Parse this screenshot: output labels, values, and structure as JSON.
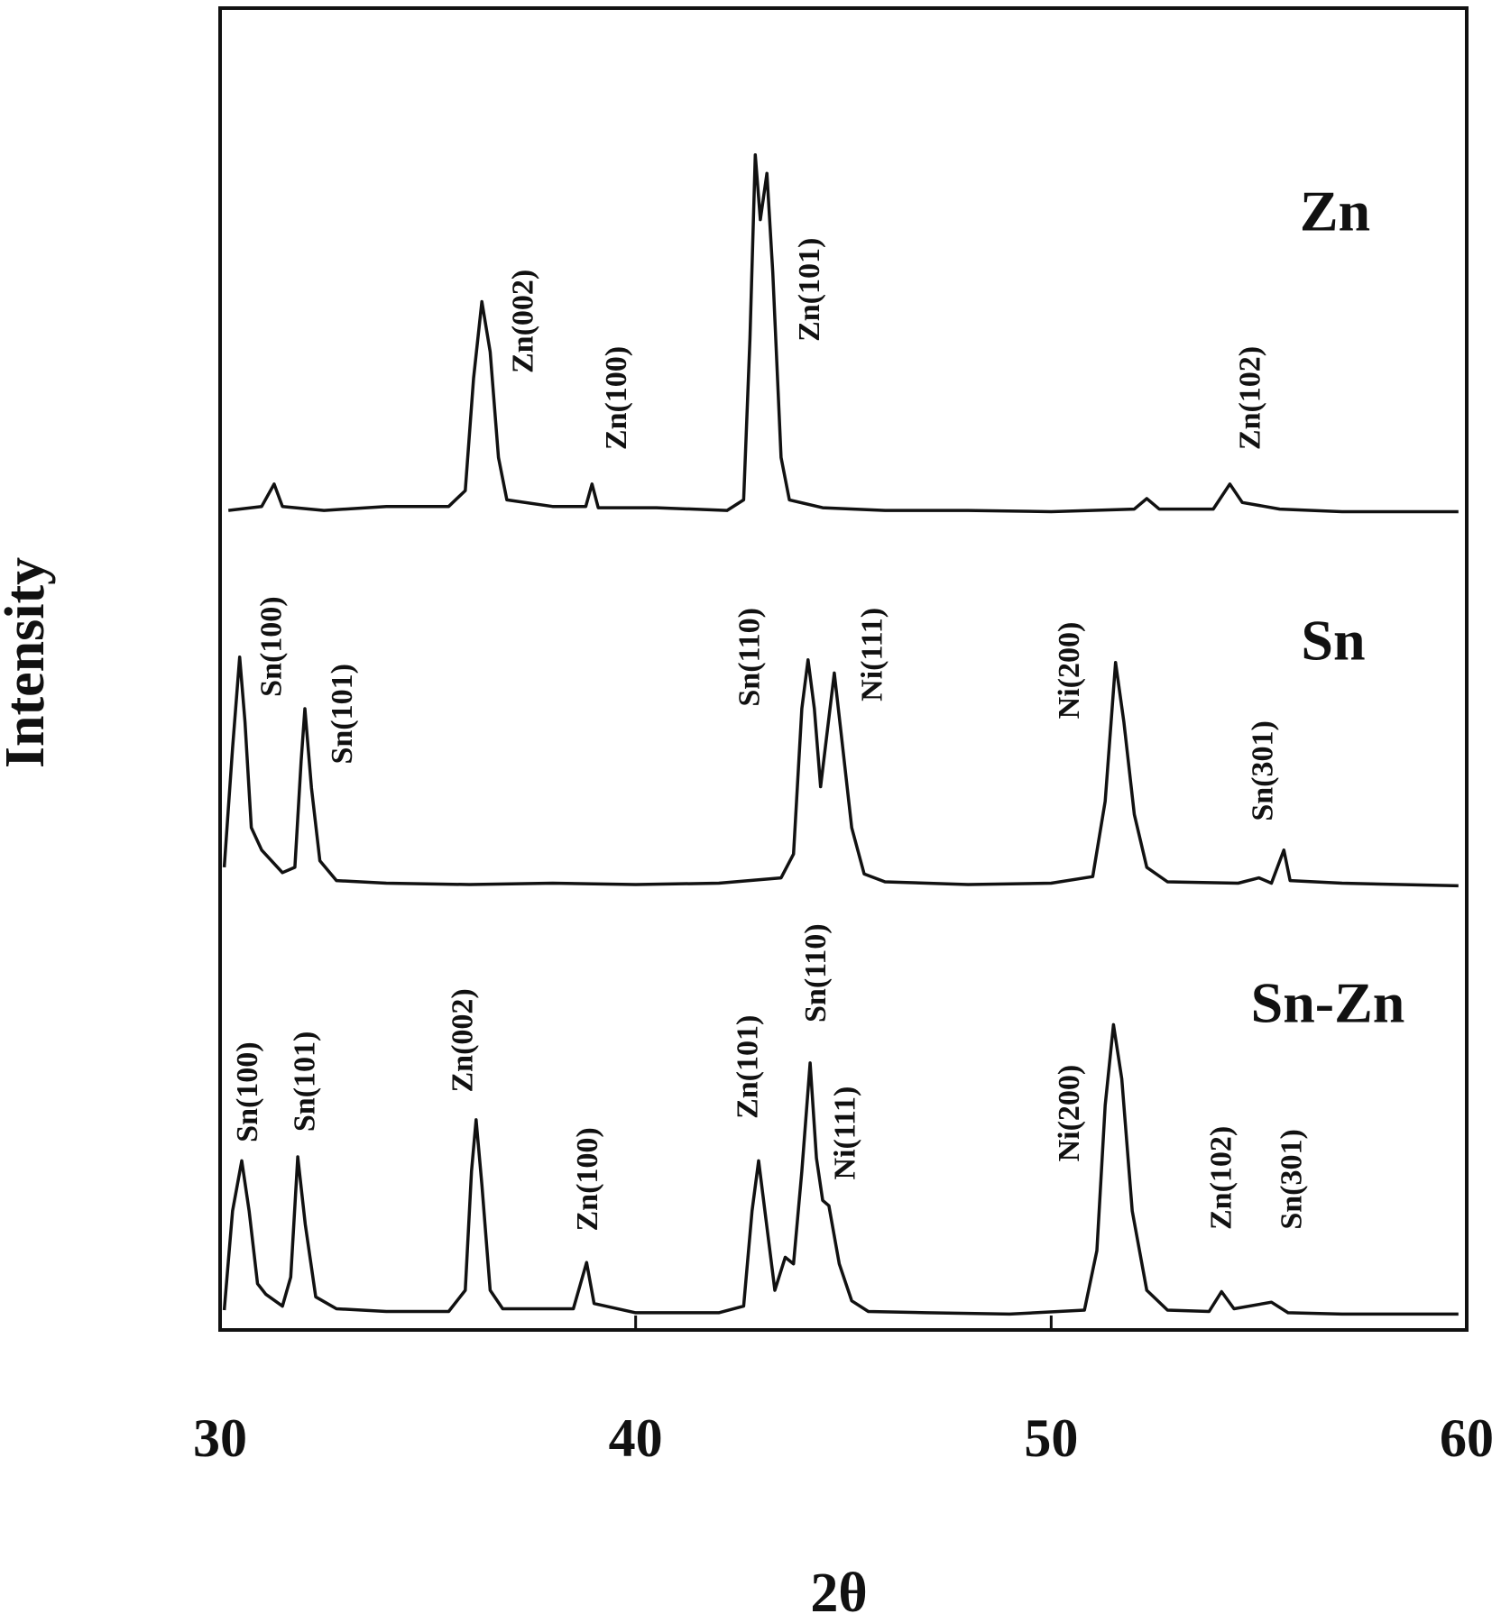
{
  "chart_data": {
    "type": "line",
    "xlabel": "2θ",
    "ylabel": "Intensity",
    "xlim": [
      30,
      60
    ],
    "xticks": [
      30,
      40,
      50,
      60
    ],
    "ylim": [
      0,
      100
    ],
    "grid": false,
    "series": [
      {
        "name": "Zn",
        "color": "#111111",
        "x": [
          30.2,
          31.0,
          31.3,
          31.5,
          32.5,
          34,
          35.5,
          35.9,
          36.1,
          36.3,
          36.5,
          36.7,
          36.9,
          38,
          38.8,
          38.95,
          39.1,
          40.5,
          42.2,
          42.6,
          42.75,
          42.88,
          43.0,
          43.16,
          43.3,
          43.5,
          43.7,
          44.5,
          46,
          48,
          50,
          52,
          52.3,
          52.6,
          53.9,
          54.3,
          54.6,
          55.5,
          57,
          59.8
        ],
        "values": [
          62.0,
          62.3,
          64.0,
          62.3,
          62.0,
          62.3,
          62.3,
          63.5,
          72,
          77.8,
          74,
          66,
          62.8,
          62.3,
          62.3,
          64.0,
          62.2,
          62.2,
          62.0,
          62.8,
          75,
          88.9,
          84,
          87.5,
          80,
          66,
          62.8,
          62.2,
          62,
          62,
          61.9,
          62.1,
          62.9,
          62.1,
          62.1,
          64.0,
          62.6,
          62.1,
          61.9,
          61.9
        ]
      },
      {
        "name": "Sn",
        "color": "#111111",
        "x": [
          30.1,
          30.3,
          30.47,
          30.6,
          30.75,
          31.0,
          31.5,
          31.8,
          31.95,
          32.04,
          32.2,
          32.4,
          32.8,
          34,
          36,
          38,
          40,
          42,
          43.5,
          43.8,
          44.0,
          44.15,
          44.3,
          44.45,
          44.6,
          44.78,
          44.95,
          45.2,
          45.5,
          46,
          48,
          50,
          51.0,
          51.3,
          51.55,
          51.75,
          52.0,
          52.3,
          52.8,
          54.5,
          55.0,
          55.3,
          55.6,
          55.75,
          57,
          59.8
        ],
        "values": [
          35.0,
          44,
          50.9,
          46,
          38,
          36.3,
          34.6,
          35,
          43,
          47.0,
          41,
          35.5,
          34.0,
          33.8,
          33.7,
          33.8,
          33.7,
          33.8,
          34.2,
          36,
          47,
          50.7,
          47,
          41.1,
          45,
          49.7,
          45,
          38,
          34.5,
          33.9,
          33.7,
          33.8,
          34.3,
          40,
          50.5,
          46,
          39,
          35,
          33.9,
          33.8,
          34.2,
          33.8,
          36.3,
          34.0,
          33.8,
          33.6
        ]
      },
      {
        "name": "Sn-Zn",
        "color": "#111111",
        "x": [
          30.1,
          30.3,
          30.52,
          30.7,
          30.9,
          31.1,
          31.5,
          31.7,
          31.87,
          32.05,
          32.3,
          32.8,
          34,
          35.5,
          35.9,
          36.05,
          36.16,
          36.3,
          36.5,
          36.8,
          38.5,
          38.82,
          39.0,
          40,
          42,
          42.6,
          42.8,
          42.96,
          43.15,
          43.35,
          43.6,
          43.8,
          44.0,
          44.2,
          44.35,
          44.5,
          44.65,
          44.9,
          45.2,
          45.6,
          47,
          49,
          50.8,
          51.1,
          51.3,
          51.5,
          51.7,
          51.95,
          52.3,
          52.8,
          53.8,
          54.1,
          54.4,
          55.3,
          55.7,
          57,
          59.8
        ],
        "values": [
          1.5,
          9,
          12.8,
          9,
          3.5,
          2.7,
          1.8,
          4,
          13.1,
          8,
          2.5,
          1.6,
          1.4,
          1.4,
          3,
          12,
          15.9,
          11,
          3,
          1.6,
          1.6,
          5.1,
          2.0,
          1.3,
          1.3,
          1.8,
          9,
          12.8,
          8,
          3,
          5.5,
          5,
          12,
          20.2,
          13,
          9.8,
          9.4,
          5,
          2.2,
          1.4,
          1.3,
          1.2,
          1.5,
          6,
          17,
          23.1,
          19,
          9,
          3,
          1.5,
          1.4,
          2.9,
          1.6,
          2.1,
          1.3,
          1.2,
          1.2
        ]
      }
    ],
    "annotations": [
      {
        "text": "Zn(002)",
        "x": 37.35,
        "y": 76.3
      },
      {
        "text": "Zn(100)",
        "x": 39.6,
        "y": 70.5
      },
      {
        "text": "Zn(101)",
        "x": 44.25,
        "y": 78.7
      },
      {
        "text": "Zn(102)",
        "x": 54.85,
        "y": 70.5
      },
      {
        "text": "Sn(100)",
        "x": 31.3,
        "y": 51.7
      },
      {
        "text": "Sn(101)",
        "x": 33.0,
        "y": 46.6
      },
      {
        "text": "Sn(110)",
        "x": 42.8,
        "y": 50.9
      },
      {
        "text": "Ni(111)",
        "x": 45.75,
        "y": 51.1
      },
      {
        "text": "Ni(200)",
        "x": 50.5,
        "y": 49.9
      },
      {
        "text": "Sn(301)",
        "x": 55.15,
        "y": 42.3
      },
      {
        "text": "Sn(100)",
        "x": 30.72,
        "y": 18.0
      },
      {
        "text": "Sn(101)",
        "x": 32.1,
        "y": 18.8
      },
      {
        "text": "Zn(002)",
        "x": 35.9,
        "y": 21.9
      },
      {
        "text": "Zn(100)",
        "x": 38.9,
        "y": 11.4
      },
      {
        "text": "Zn(101)",
        "x": 42.76,
        "y": 19.9
      },
      {
        "text": "Sn(110)",
        "x": 44.4,
        "y": 27.0
      },
      {
        "text": "Ni(111)",
        "x": 45.1,
        "y": 14.9
      },
      {
        "text": "Ni(200)",
        "x": 50.5,
        "y": 16.4
      },
      {
        "text": "Zn(102)",
        "x": 54.15,
        "y": 11.5
      },
      {
        "text": "Sn(301)",
        "x": 55.85,
        "y": 11.4
      }
    ]
  }
}
